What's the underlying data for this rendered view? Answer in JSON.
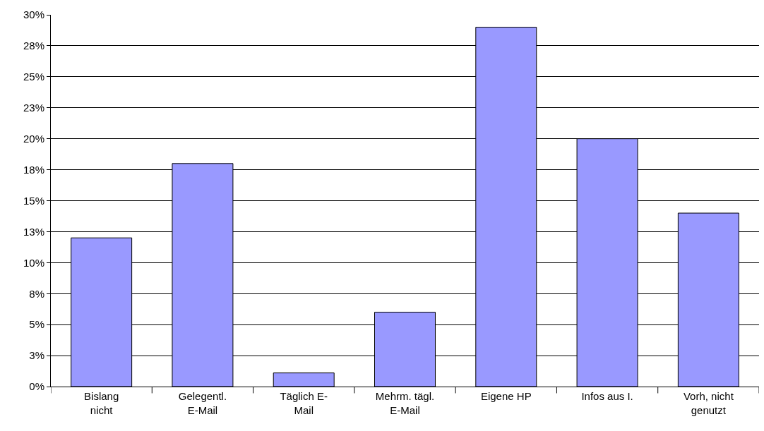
{
  "chart_data": {
    "type": "bar",
    "categories": [
      "Bislang nicht",
      "Gelegentl. E-Mail",
      "Täglich E-Mail",
      "Mehrm. tägl. E-Mail",
      "Eigene HP",
      "Infos aus I.",
      "Vorh, nicht genutzt"
    ],
    "values": [
      12,
      18,
      1.1,
      6,
      29,
      20,
      14
    ],
    "color": "#9999ff",
    "ylim": [
      0,
      30
    ],
    "yticks": [
      {
        "value": 0,
        "label": "0%"
      },
      {
        "value": 2.5,
        "label": "3%"
      },
      {
        "value": 5,
        "label": "5%"
      },
      {
        "value": 7.5,
        "label": "8%"
      },
      {
        "value": 10,
        "label": "10%"
      },
      {
        "value": 12.5,
        "label": "13%"
      },
      {
        "value": 15,
        "label": "15%"
      },
      {
        "value": 17.5,
        "label": "18%"
      },
      {
        "value": 20,
        "label": "20%"
      },
      {
        "value": 22.5,
        "label": "23%"
      },
      {
        "value": 25,
        "label": "25%"
      },
      {
        "value": 27.5,
        "label": "28%"
      },
      {
        "value": 30,
        "label": "30%"
      }
    ],
    "grid": "y"
  }
}
